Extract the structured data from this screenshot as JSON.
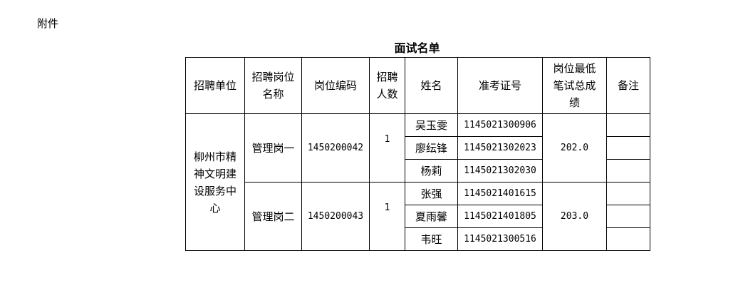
{
  "attachment_label": "附件",
  "title": "面试名单",
  "headers": [
    "招聘单位",
    "招聘岗位名称",
    "岗位编码",
    "招聘人数",
    "姓名",
    "准考证号",
    "岗位最低笔试总成绩",
    "备注"
  ],
  "unit": "柳州市精神文明建设服务中心",
  "positions": [
    {
      "name": "管理岗一",
      "code": "1450200042",
      "count": "1",
      "min_score": "202.0",
      "candidates": [
        {
          "name": "吴玉雯",
          "ticket": "1145021300906",
          "note": ""
        },
        {
          "name": "廖纭锋",
          "ticket": "1145021302023",
          "note": ""
        },
        {
          "name": "杨莉",
          "ticket": "1145021302030",
          "note": ""
        }
      ]
    },
    {
      "name": "管理岗二",
      "code": "1450200043",
      "count": "1",
      "min_score": "203.0",
      "candidates": [
        {
          "name": "张强",
          "ticket": "1145021401615",
          "note": ""
        },
        {
          "name": "夏雨馨",
          "ticket": "1145021401805",
          "note": ""
        },
        {
          "name": "韦旺",
          "ticket": "1145021300516",
          "note": ""
        }
      ]
    }
  ]
}
